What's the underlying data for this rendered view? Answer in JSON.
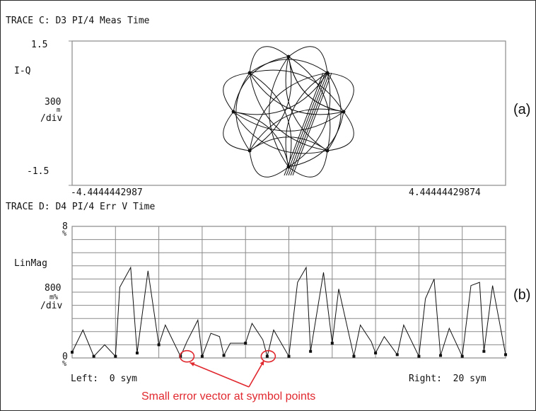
{
  "panel_tags": {
    "a": "(a)",
    "b": "(b)"
  },
  "annotation": "Small error vector at symbol points",
  "colors": {
    "trace": "#111111",
    "grid": "#8a8a8a",
    "annotation": "#e0282e"
  },
  "chart_data": [
    {
      "type": "scatter",
      "title": "TRACE C: D3 PI/4 Meas Time",
      "ylabel": "I-Q",
      "y_ticks": [
        "1.5",
        "-1.5"
      ],
      "y_scale_value": "300",
      "y_scale_prefix": "m",
      "y_scale_unit": "/div",
      "x_left": "-4.4444442987",
      "x_right": "4.44444429874",
      "xlim": [
        -4.4444442987,
        4.44444429874
      ],
      "ylim": [
        -1.5,
        1.5
      ],
      "grid": false,
      "constellation_points": [
        [
          0.95,
          0.0
        ],
        [
          0.67,
          0.67
        ],
        [
          0.0,
          0.95
        ],
        [
          -0.67,
          0.67
        ],
        [
          -0.95,
          0.0
        ],
        [
          -0.67,
          -0.67
        ],
        [
          0.0,
          -0.95
        ],
        [
          0.67,
          -0.67
        ]
      ]
    },
    {
      "type": "line",
      "title": "TRACE D: D4 PI/4 Err V Time",
      "ylabel": "LinMag",
      "y_top": "8",
      "y_top_unit": "%",
      "y_scale_value": "800",
      "y_scale_unit": "m%",
      "y_scale_per": "/div",
      "y_bottom": "0",
      "y_bottom_unit": "%",
      "x_left_label": "Left:  0 sym",
      "x_right_label": "Right:  20 sym",
      "xlim": [
        0,
        20
      ],
      "ylim": [
        0,
        8
      ],
      "grid": true,
      "symbol_x": [
        0,
        1,
        2,
        3,
        4,
        5,
        6,
        7,
        8,
        9,
        10,
        11,
        12,
        13,
        14,
        15,
        16,
        17,
        18,
        19,
        20
      ],
      "symbol_y": [
        0.35,
        0.1,
        0.1,
        0.3,
        0.8,
        0.1,
        0.1,
        0.15,
        0.9,
        0.1,
        0.1,
        0.4,
        0.9,
        0.1,
        0.3,
        0.2,
        0.1,
        0.15,
        0.1,
        0.4,
        0.2
      ],
      "peaks_x": [
        0.5,
        1.5,
        2.2,
        2.7,
        3.5,
        4.3,
        5.3,
        5.8,
        6.4,
        6.8,
        7.3,
        8.3,
        8.8,
        9.3,
        10.4,
        10.8,
        11.6,
        12.3,
        13.3,
        13.8,
        14.4,
        15.3,
        16.3,
        16.7,
        17.4,
        18.4,
        18.8,
        19.4
      ],
      "peaks_y": [
        1.7,
        0.8,
        4.3,
        5.5,
        5.3,
        2.0,
        1.0,
        2.3,
        1.5,
        1.3,
        0.9,
        2.1,
        1.1,
        1.7,
        4.6,
        5.5,
        5.2,
        4.2,
        2.0,
        1.0,
        1.3,
        2.0,
        3.6,
        4.8,
        1.8,
        4.4,
        4.6,
        4.4
      ]
    }
  ]
}
